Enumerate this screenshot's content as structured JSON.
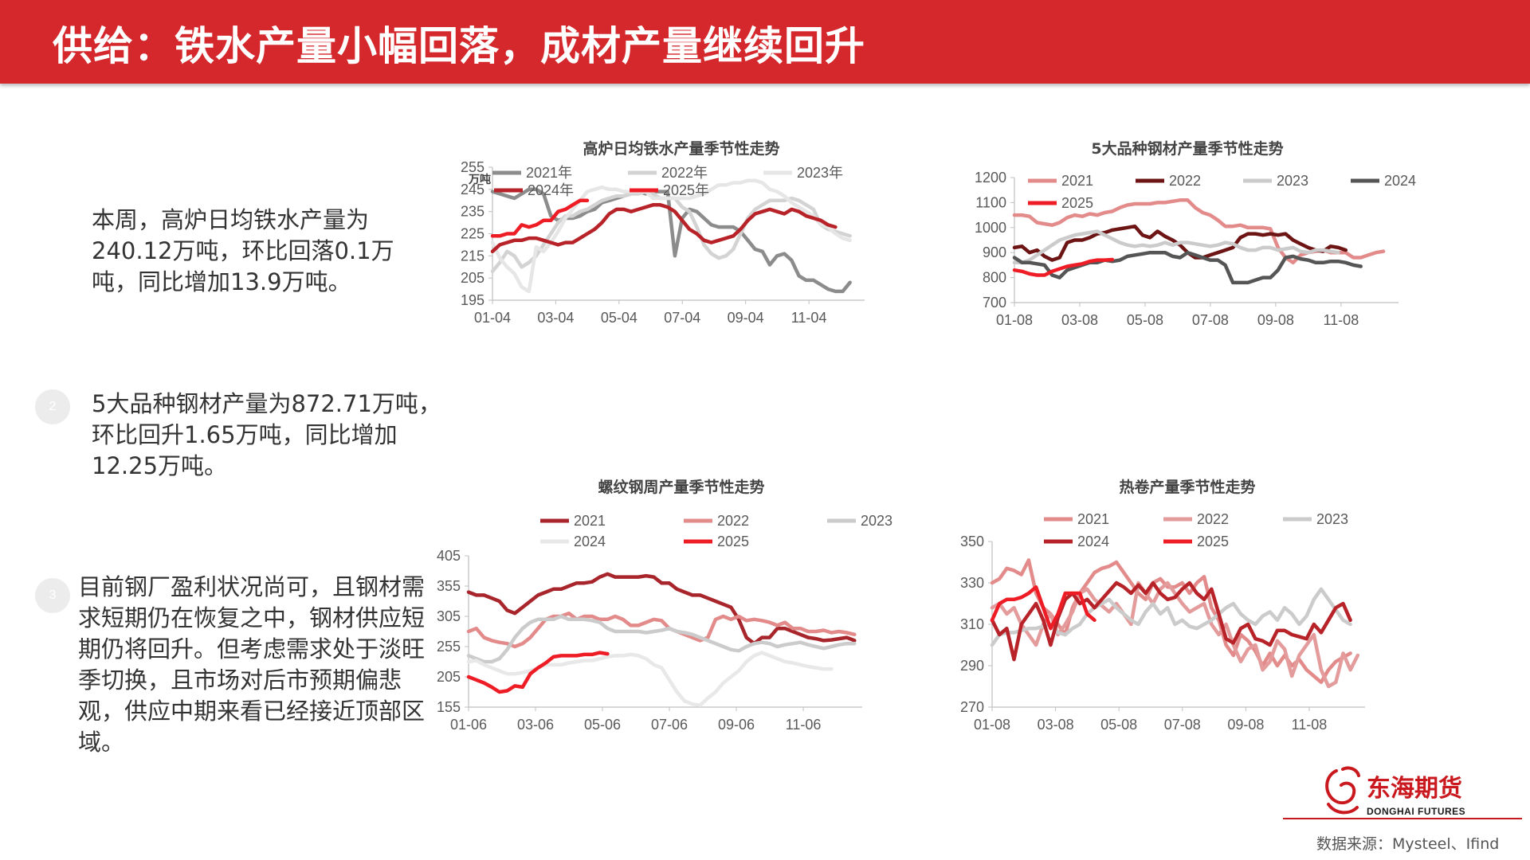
{
  "header": {
    "title": "供给：铁水产量小幅回落，成材产量继续回升"
  },
  "left_text": {
    "p1": [
      "本周，高炉日均铁水产量为",
      "240.12万吨，环比回落0.1万",
      "吨，同比增加13.9万吨。"
    ],
    "p2_num": "2",
    "p2": [
      "5大品种钢材产量为872.71万吨，",
      "环比回升1.65万吨，同比增加",
      "12.25万吨。"
    ],
    "p3_num": "3",
    "p3": [
      "目前钢厂盈利状况尚可，且钢材需",
      "求短期仍在恢复之中，钢材供应短",
      "期仍将回升。但考虑需求处于淡旺",
      "季切换，且市场对后市预期偏悲",
      "观，供应中期来看已经接近顶部区",
      "域。"
    ]
  },
  "logo": {
    "name_cn": "东海期货",
    "name_en": "DONGHAI FUTURES",
    "brand_color": "#c9191f"
  },
  "source": "数据来源：Mysteel、Ifind",
  "chart_data": [
    {
      "type": "line",
      "title": "高炉日均铁水产量季节性走势",
      "unit": "万吨",
      "xticks": [
        "01-04",
        "03-04",
        "05-04",
        "07-04",
        "09-04",
        "11-04"
      ],
      "ylim": [
        195,
        255
      ],
      "yticks": [
        195,
        205,
        215,
        225,
        235,
        245,
        255
      ],
      "series": [
        {
          "name": "2021年",
          "color": "#8c8c8c",
          "values": [
            244,
            243,
            242,
            241,
            243,
            245,
            245,
            243,
            233,
            231,
            232,
            232,
            233,
            235,
            236,
            239,
            240,
            241,
            242,
            243,
            244,
            243,
            244,
            244,
            244,
            215,
            232,
            236,
            235,
            232,
            229,
            228,
            228,
            228,
            226,
            222,
            218,
            217,
            211,
            215,
            216,
            213,
            206,
            204,
            204,
            202,
            200,
            199,
            199,
            203
          ]
        },
        {
          "name": "2022年",
          "color": "#d3d3d3",
          "values": [
            208,
            212,
            217,
            215,
            210,
            212,
            215,
            220,
            225,
            230,
            233,
            233,
            235,
            236,
            238,
            240,
            241,
            242,
            242,
            243,
            243,
            244,
            243,
            241,
            241,
            241,
            237,
            235,
            228,
            220,
            216,
            214,
            215,
            218,
            225,
            232,
            236,
            238,
            240,
            240,
            240,
            241,
            240,
            238,
            236,
            229,
            227,
            226,
            225,
            224
          ]
        },
        {
          "name": "2023年",
          "color": "#e6e6e6",
          "values": [
            221,
            214,
            210,
            207,
            201,
            199,
            219,
            217,
            221,
            226,
            232,
            236,
            240,
            244,
            245,
            246,
            245,
            245,
            244,
            244,
            244,
            244,
            241,
            241,
            241,
            241,
            241,
            241,
            242,
            243,
            245,
            247,
            247,
            248,
            248,
            249,
            249,
            248,
            245,
            244,
            242,
            239,
            237,
            235,
            233,
            229,
            228,
            225,
            223,
            222
          ]
        },
        {
          "name": "2024年",
          "color": "#b72328",
          "values": [
            217,
            220,
            221,
            222,
            222,
            223,
            223,
            222,
            221,
            220,
            221,
            221,
            223,
            225,
            227,
            230,
            234,
            236,
            236,
            235,
            236,
            237,
            238,
            238,
            237,
            235,
            231,
            227,
            225,
            222,
            221,
            222,
            223,
            224,
            227,
            231,
            234,
            235,
            236,
            235,
            234,
            236,
            235,
            233,
            232,
            231,
            229,
            228
          ]
        },
        {
          "name": "2025年",
          "color": "#ee1c25",
          "values": [
            224,
            224,
            225,
            225,
            229,
            228,
            229,
            231,
            231,
            235,
            236,
            238,
            240,
            240
          ]
        }
      ]
    },
    {
      "type": "line",
      "title": "5大品种钢材产量季节性走势",
      "xticks": [
        "01-08",
        "03-08",
        "05-08",
        "07-08",
        "09-08",
        "11-08"
      ],
      "ylim": [
        700,
        1200
      ],
      "yticks": [
        700,
        800,
        900,
        1000,
        1100,
        1200
      ],
      "series": [
        {
          "name": "2021",
          "color": "#e38b8b",
          "values": [
            1050,
            1050,
            1045,
            1020,
            1015,
            1010,
            1020,
            1040,
            1050,
            1045,
            1055,
            1050,
            1060,
            1065,
            1080,
            1090,
            1095,
            1095,
            1095,
            1100,
            1100,
            1105,
            1110,
            1110,
            1080,
            1060,
            1050,
            1030,
            1005,
            1005,
            1010,
            1000,
            1000,
            1000,
            995,
            920,
            880,
            860,
            890,
            900,
            905,
            910,
            900,
            900,
            900,
            880,
            880,
            890,
            900,
            905
          ]
        },
        {
          "name": "2022",
          "color": "#6d1414",
          "values": [
            920,
            925,
            900,
            910,
            885,
            870,
            880,
            940,
            950,
            950,
            960,
            975,
            980,
            990,
            995,
            1000,
            1005,
            970,
            960,
            985,
            965,
            950,
            930,
            900,
            880,
            880,
            890,
            900,
            910,
            920,
            960,
            975,
            975,
            970,
            975,
            970,
            975,
            950,
            935,
            920,
            910,
            905,
            925,
            920,
            910
          ]
        },
        {
          "name": "2023",
          "color": "#cbcbcb",
          "values": [
            860,
            860,
            870,
            890,
            910,
            930,
            950,
            960,
            970,
            975,
            980,
            985,
            970,
            955,
            940,
            930,
            925,
            930,
            925,
            930,
            940,
            930,
            940,
            940,
            935,
            930,
            925,
            930,
            940,
            935,
            920,
            910,
            910,
            920,
            920,
            910,
            915,
            920,
            905,
            900,
            910,
            910,
            905,
            900
          ]
        },
        {
          "name": "2024",
          "color": "#555555",
          "values": [
            880,
            860,
            860,
            855,
            850,
            810,
            800,
            830,
            840,
            850,
            860,
            860,
            870,
            865,
            870,
            885,
            890,
            895,
            900,
            900,
            900,
            885,
            880,
            900,
            890,
            880,
            870,
            870,
            850,
            780,
            780,
            780,
            790,
            800,
            800,
            830,
            880,
            885,
            875,
            870,
            860,
            860,
            865,
            865,
            860,
            850,
            845
          ]
        },
        {
          "name": "2025",
          "color": "#ee1c25",
          "values": [
            830,
            825,
            815,
            810,
            810,
            825,
            835,
            845,
            850,
            855,
            865,
            870,
            870,
            872
          ]
        }
      ]
    },
    {
      "type": "line",
      "title": "螺纹钢周产量季节性走势",
      "xticks": [
        "01-06",
        "03-06",
        "05-06",
        "07-06",
        "09-06",
        "11-06"
      ],
      "ylim": [
        155,
        405
      ],
      "yticks": [
        155,
        205,
        255,
        305,
        355,
        405
      ],
      "series": [
        {
          "name": "2021",
          "color": "#a8262b",
          "values": [
            345,
            340,
            340,
            335,
            330,
            315,
            310,
            320,
            330,
            340,
            345,
            350,
            350,
            355,
            360,
            360,
            362,
            370,
            375,
            370,
            370,
            370,
            370,
            372,
            370,
            360,
            360,
            350,
            345,
            340,
            340,
            335,
            330,
            325,
            320,
            300,
            270,
            260,
            270,
            270,
            285,
            285,
            280,
            275,
            270,
            268,
            265,
            266,
            268,
            270,
            265
          ]
        },
        {
          "name": "2022",
          "color": "#e38b8b",
          "values": [
            280,
            285,
            270,
            265,
            262,
            260,
            255,
            260,
            270,
            285,
            300,
            305,
            305,
            310,
            300,
            305,
            305,
            300,
            300,
            305,
            300,
            290,
            290,
            295,
            300,
            298,
            285,
            280,
            275,
            270,
            265,
            270,
            300,
            305,
            300,
            305,
            298,
            300,
            298,
            295,
            290,
            295,
            285,
            285,
            280,
            280,
            282,
            278,
            280,
            278,
            275
          ]
        },
        {
          "name": "2023",
          "color": "#cbcbcb",
          "values": [
            240,
            235,
            230,
            230,
            235,
            250,
            270,
            285,
            295,
            300,
            300,
            300,
            305,
            300,
            300,
            300,
            298,
            295,
            285,
            280,
            280,
            280,
            280,
            278,
            280,
            282,
            285,
            280,
            278,
            275,
            270,
            265,
            260,
            255,
            250,
            248,
            255,
            260,
            262,
            260,
            255,
            258,
            260,
            262,
            258,
            255,
            252,
            255,
            258,
            260,
            260
          ]
        },
        {
          "name": "2024",
          "color": "#e8e8e8",
          "values": [
            230,
            232,
            225,
            220,
            215,
            210,
            210,
            212,
            215,
            220,
            225,
            225,
            225,
            228,
            230,
            232,
            232,
            235,
            238,
            240,
            240,
            242,
            240,
            235,
            225,
            220,
            200,
            180,
            165,
            160,
            158,
            170,
            180,
            195,
            205,
            215,
            230,
            240,
            245,
            240,
            235,
            230,
            228,
            225,
            222,
            220,
            218,
            218
          ]
        },
        {
          "name": "2025",
          "color": "#ee1c25",
          "values": [
            205,
            200,
            195,
            188,
            180,
            182,
            190,
            188,
            210,
            220,
            228,
            238,
            240,
            240,
            240,
            242,
            242,
            245,
            243
          ]
        }
      ]
    },
    {
      "type": "line",
      "title": "热卷产量季节性走势",
      "xticks": [
        "01-08",
        "03-08",
        "05-08",
        "07-08",
        "09-08",
        "11-08"
      ],
      "ylim": [
        270,
        350
      ],
      "yticks": [
        270,
        290,
        310,
        330,
        350
      ],
      "series": [
        {
          "name": "2021",
          "color": "#e38b8b",
          "values": [
            330,
            332,
            337,
            336,
            334,
            341,
            325,
            318,
            315,
            310,
            305,
            318,
            325,
            330,
            335,
            337,
            338,
            340,
            335,
            330,
            325,
            322,
            330,
            332,
            328,
            328,
            330,
            325,
            330,
            333,
            318,
            312,
            300,
            295,
            305,
            302,
            297,
            290,
            296,
            290,
            295,
            290,
            293,
            288,
            285,
            282,
            288,
            292,
            294,
            296
          ]
        },
        {
          "name": "2022",
          "color": "#e49b9b",
          "values": [
            318,
            320,
            315,
            318,
            310,
            305,
            300,
            310,
            315,
            305,
            310,
            316,
            325,
            327,
            322,
            319,
            316,
            320,
            315,
            310,
            330,
            325,
            320,
            327,
            330,
            325,
            320,
            316,
            318,
            320,
            310,
            305,
            310,
            300,
            292,
            298,
            300,
            288,
            292,
            302,
            298,
            285,
            295,
            300,
            305,
            288,
            280,
            282,
            296,
            288,
            295
          ]
        },
        {
          "name": "2023",
          "color": "#cbcbcb",
          "values": [
            300,
            305,
            306,
            306,
            307,
            308,
            308,
            309,
            310,
            306,
            305,
            308,
            310,
            315,
            318,
            320,
            322,
            318,
            315,
            312,
            310,
            316,
            320,
            315,
            318,
            310,
            312,
            309,
            308,
            310,
            312,
            315,
            318,
            320,
            315,
            312,
            310,
            314,
            316,
            312,
            318,
            315,
            310,
            314,
            322,
            327,
            322,
            317,
            312,
            310
          ]
        },
        {
          "name": "2024",
          "color": "#b72328",
          "values": [
            312,
            305,
            308,
            293,
            310,
            315,
            320,
            312,
            300,
            313,
            322,
            325,
            320,
            322,
            318,
            322,
            326,
            330,
            328,
            325,
            329,
            325,
            330,
            325,
            322,
            323,
            327,
            330,
            325,
            322,
            327,
            315,
            303,
            301,
            308,
            310,
            303,
            302,
            300,
            307,
            307,
            305,
            304,
            303,
            310,
            306,
            312,
            318,
            320,
            312
          ]
        },
        {
          "name": "2025",
          "color": "#ee1c25",
          "values": [
            312,
            320,
            322,
            322,
            323,
            325,
            328,
            318,
            308,
            315,
            325,
            325,
            325,
            315,
            312
          ]
        }
      ]
    }
  ]
}
